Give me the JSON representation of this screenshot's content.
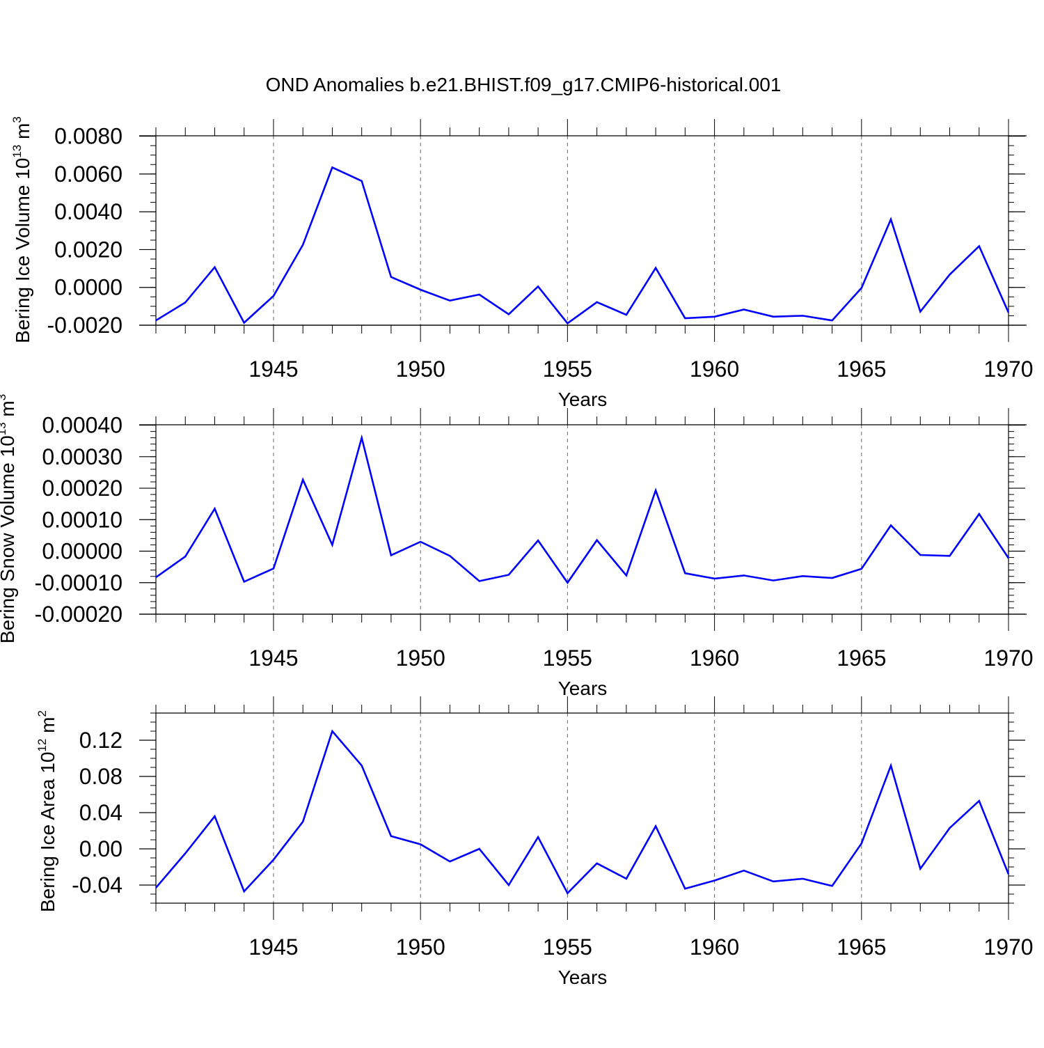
{
  "title": "OND Anomalies b.e21.BHIST.f09_g17.CMIP6-historical.001",
  "colors": {
    "line": "#0000ff",
    "axis": "#000000",
    "grid": "#666666",
    "background": "#ffffff"
  },
  "chart_data": [
    {
      "type": "line",
      "name": "ice-volume",
      "ylabel": {
        "prefix": "Bering Ice Volume 10",
        "exp1": "13",
        "mid": " m",
        "exp2": "3"
      },
      "xlabel": "Years",
      "xlim": [
        1941,
        1970
      ],
      "ylim": [
        -0.002,
        0.0085
      ],
      "yticks": [
        -0.002,
        0.0,
        0.002,
        0.004,
        0.006,
        0.008
      ],
      "ytick_labels": [
        "-0.0020",
        "0.0000",
        "0.0020",
        "0.0040",
        "0.0060",
        "0.0080"
      ],
      "yminor_step": 0.0005,
      "xticks": [
        1945,
        1950,
        1955,
        1960,
        1965,
        1970
      ],
      "xtick_labels": [
        "1945",
        "1950",
        "1955",
        "1960",
        "1965",
        "1970"
      ],
      "x": [
        1941,
        1942,
        1943,
        1944,
        1945,
        1946,
        1947,
        1948,
        1949,
        1950,
        1951,
        1952,
        1953,
        1954,
        1955,
        1956,
        1957,
        1958,
        1959,
        1960,
        1961,
        1962,
        1963,
        1964,
        1965,
        1966,
        1967,
        1968,
        1969,
        1970
      ],
      "y": [
        -0.00175,
        -0.0008,
        0.00107,
        -0.00187,
        -0.00045,
        0.00225,
        0.00635,
        0.00563,
        0.00055,
        -0.00012,
        -0.0007,
        -0.00038,
        -0.00142,
        5e-05,
        -0.0019,
        -0.00078,
        -0.00145,
        0.00103,
        -0.00163,
        -0.00155,
        -0.00117,
        -0.00155,
        -0.0015,
        -0.00175,
        -3e-05,
        0.0036,
        -0.00128,
        0.00068,
        0.00218,
        -0.00133
      ]
    },
    {
      "type": "line",
      "name": "snow-volume",
      "ylabel": {
        "prefix": "Bering Snow Volume 10",
        "exp1": "13",
        "mid": " m",
        "exp2": "3"
      },
      "xlabel": "Years",
      "xlim": [
        1941,
        1970
      ],
      "ylim": [
        -0.0002,
        0.00043
      ],
      "yticks": [
        -0.0002,
        -0.0001,
        0.0,
        0.0001,
        0.0002,
        0.0003,
        0.0004
      ],
      "ytick_labels": [
        "-0.00020",
        "-0.00010",
        "0.00000",
        "0.00010",
        "0.00020",
        "0.00030",
        "0.00040"
      ],
      "yminor_step": 2e-05,
      "xticks": [
        1945,
        1950,
        1955,
        1960,
        1965,
        1970
      ],
      "xtick_labels": [
        "1945",
        "1950",
        "1955",
        "1960",
        "1965",
        "1970"
      ],
      "x": [
        1941,
        1942,
        1943,
        1944,
        1945,
        1946,
        1947,
        1948,
        1949,
        1950,
        1951,
        1952,
        1953,
        1954,
        1955,
        1956,
        1957,
        1958,
        1959,
        1960,
        1961,
        1962,
        1963,
        1964,
        1965,
        1966,
        1967,
        1968,
        1969,
        1970
      ],
      "y": [
        -8.3e-05,
        -1.7e-05,
        0.000135,
        -9.7e-05,
        -5.5e-05,
        0.000227,
        2e-05,
        0.00036,
        -1.3e-05,
        3e-05,
        -1.5e-05,
        -9.5e-05,
        -7.5e-05,
        3.4e-05,
        -0.0001,
        3.5e-05,
        -7.7e-05,
        0.000193,
        -7e-05,
        -8.7e-05,
        -7.7e-05,
        -9.3e-05,
        -7.9e-05,
        -8.5e-05,
        -5.6e-05,
        8.2e-05,
        -1.2e-05,
        -1.5e-05,
        0.000118,
        -2.2e-05
      ]
    },
    {
      "type": "line",
      "name": "ice-area",
      "ylabel": {
        "prefix": "Bering Ice Area 10",
        "exp1": "12",
        "mid": " m",
        "exp2": "2"
      },
      "xlabel": "Years",
      "xlim": [
        1941,
        1970
      ],
      "ylim": [
        -0.06,
        0.15
      ],
      "yticks": [
        -0.04,
        0.0,
        0.04,
        0.08,
        0.12
      ],
      "ytick_labels": [
        "-0.04",
        "0.00",
        "0.04",
        "0.08",
        "0.12"
      ],
      "yminor_step": 0.01,
      "xticks": [
        1945,
        1950,
        1955,
        1960,
        1965,
        1970
      ],
      "xtick_labels": [
        "1945",
        "1950",
        "1955",
        "1960",
        "1965",
        "1970"
      ],
      "x": [
        1941,
        1942,
        1943,
        1944,
        1945,
        1946,
        1947,
        1948,
        1949,
        1950,
        1951,
        1952,
        1953,
        1954,
        1955,
        1956,
        1957,
        1958,
        1959,
        1960,
        1961,
        1962,
        1963,
        1964,
        1965,
        1966,
        1967,
        1968,
        1969,
        1970
      ],
      "y": [
        -0.043,
        -0.005,
        0.036,
        -0.047,
        -0.012,
        0.03,
        0.13,
        0.092,
        0.014,
        0.005,
        -0.014,
        0.0,
        -0.04,
        0.013,
        -0.049,
        -0.016,
        -0.033,
        0.025,
        -0.044,
        -0.035,
        -0.024,
        -0.036,
        -0.033,
        -0.041,
        0.006,
        0.092,
        -0.022,
        0.023,
        0.053,
        -0.028
      ]
    }
  ]
}
